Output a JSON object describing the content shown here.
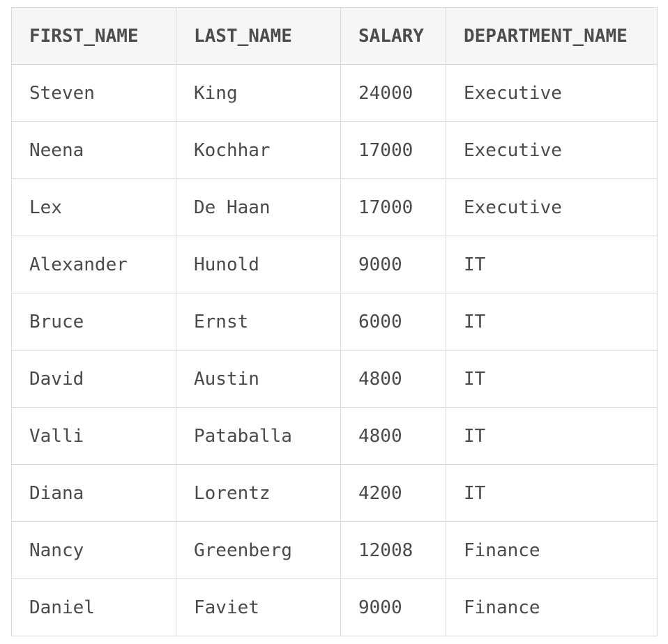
{
  "table": {
    "columns": [
      "FIRST_NAME",
      "LAST_NAME",
      "SALARY",
      "DEPARTMENT_NAME"
    ],
    "rows": [
      [
        "Steven",
        "King",
        "24000",
        "Executive"
      ],
      [
        "Neena",
        "Kochhar",
        "17000",
        "Executive"
      ],
      [
        "Lex",
        "De Haan",
        "17000",
        "Executive"
      ],
      [
        "Alexander",
        "Hunold",
        "9000",
        "IT"
      ],
      [
        "Bruce",
        "Ernst",
        "6000",
        "IT"
      ],
      [
        "David",
        "Austin",
        "4800",
        "IT"
      ],
      [
        "Valli",
        "Pataballa",
        "4800",
        "IT"
      ],
      [
        "Diana",
        "Lorentz",
        "4200",
        "IT"
      ],
      [
        "Nancy",
        "Greenberg",
        "12008",
        "Finance"
      ],
      [
        "Daniel",
        "Faviet",
        "9000",
        "Finance"
      ]
    ]
  }
}
